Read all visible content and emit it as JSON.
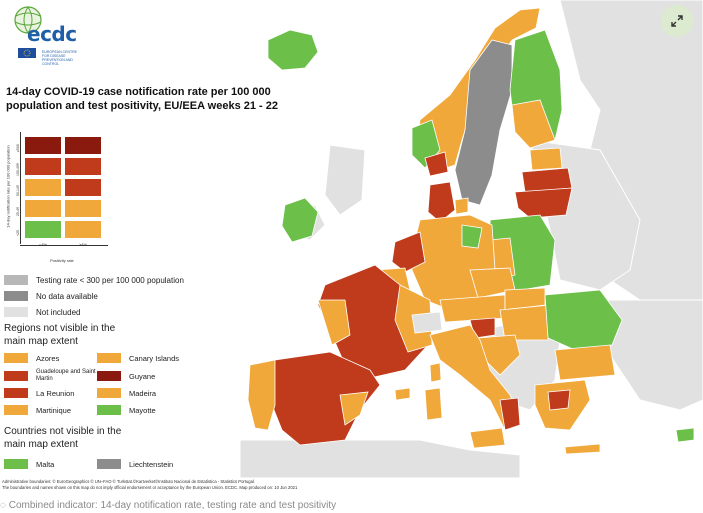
{
  "logo": {
    "text": "ecdc",
    "subtitle": "EUROPEAN CENTRE FOR DISEASE PREVENTION AND CONTROL"
  },
  "title": "14-day COVID-19 case notification rate per 100 000 population and test positivity, EU/EEA weeks 21 - 22",
  "matrix": {
    "y_axis_title": "14-day notification rate per 100 000 population",
    "x_axis_title": "Positivity rate",
    "y_ticks": [
      "≥500",
      "150-499",
      "50-149",
      "25-49",
      "<25"
    ],
    "x_ticks": [
      "<4%",
      "≥4%"
    ],
    "colors": {
      "dark_red": "#8b1a0e",
      "red": "#bf3b1b",
      "orange": "#f1a83a",
      "green": "#6cc04a"
    }
  },
  "legend": {
    "testing_rate": "Testing rate < 300 per 100 000 population",
    "no_data": "No data available",
    "not_included": "Not included",
    "colors": {
      "testing_rate": "#b8b8b8",
      "no_data": "#8c8c8c",
      "not_included": "#e1e1e1"
    }
  },
  "regions_section_title": "Regions not visible in the main map extent",
  "regions": [
    {
      "name": "Azores",
      "color": "#f1a83a"
    },
    {
      "name": "Canary Islands",
      "color": "#f1a83a"
    },
    {
      "name": "Guadeloupe and Saint Martin",
      "color": "#bf3b1b"
    },
    {
      "name": "Guyane",
      "color": "#8b1a0e"
    },
    {
      "name": "La Reunion",
      "color": "#bf3b1b"
    },
    {
      "name": "Madeira",
      "color": "#f1a83a"
    },
    {
      "name": "Martinique",
      "color": "#f1a83a"
    },
    {
      "name": "Mayotte",
      "color": "#6cc04a"
    }
  ],
  "countries_section_title": "Countries not visible in the main map extent",
  "countries": [
    {
      "name": "Malta",
      "color": "#6cc04a"
    },
    {
      "name": "Liechtenstein",
      "color": "#8c8c8c"
    }
  ],
  "footnote": {
    "line1": "Administrative boundaries: © EuroGeographics © UN–FAO © Turkstat.©Kartverket©Instituto Nacional de Estatística - Statistics Portugal.",
    "line2": "The boundaries and names shown on this map do not imply official endorsement or acceptance by the European Union. ECDC. Map produced on: 10 Jun 2021"
  },
  "caption": "Combined indicator: 14-day notification rate, testing rate and test positivity"
}
